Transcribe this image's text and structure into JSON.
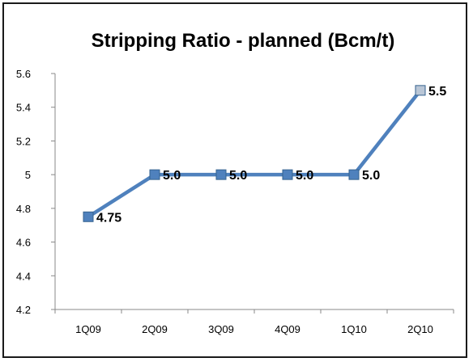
{
  "chart_data": {
    "type": "line",
    "title": "Stripping Ratio - planned (Bcm/t)",
    "categories": [
      "1Q09",
      "2Q09",
      "3Q09",
      "4Q09",
      "1Q10",
      "2Q10"
    ],
    "series": [
      {
        "values": [
          4.75,
          5.0,
          5.0,
          5.0,
          5.0,
          5.5
        ],
        "data_labels": [
          "4.75",
          "5.0",
          "5.0",
          "5.0",
          "5.0",
          "5.5"
        ],
        "color": "#4f81bd",
        "marker_colors": [
          "#4f81bd",
          "#4f81bd",
          "#4f81bd",
          "#4f81bd",
          "#4f81bd",
          "#b9c6d6"
        ]
      }
    ],
    "ylim": [
      4.2,
      5.6
    ],
    "yticks": [
      "4.2",
      "4.4",
      "4.6",
      "4.8",
      "5",
      "5.2",
      "5.4",
      "5.6"
    ],
    "xlabel": "",
    "ylabel": "",
    "grid": false,
    "legend": "none"
  }
}
